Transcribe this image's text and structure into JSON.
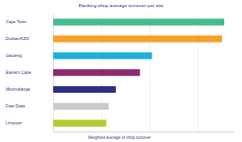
{
  "chart_data": {
    "type": "bar",
    "orientation": "horizontal",
    "title": "Ranking shop average turnover per site",
    "x_label": "Weighted average of shop turnover",
    "categories": [
      "Cape Town",
      "Durban/KZN",
      "Gauteng",
      "Eastern Cape",
      "Mpumalanga",
      "Free State",
      "Limpopo"
    ],
    "values": [
      3.55,
      3.5,
      2.05,
      1.8,
      1.3,
      1.15,
      1.1
    ],
    "colors": [
      "#44bc8c",
      "#f5a02a",
      "#1eaede",
      "#8c2a70",
      "#2d2f82",
      "#cbcbcb",
      "#b4cb2f"
    ],
    "xlim": [
      0,
      3.75
    ],
    "xticks": [
      0,
      1,
      2,
      3
    ],
    "grid": true,
    "tick_labels": "y"
  }
}
